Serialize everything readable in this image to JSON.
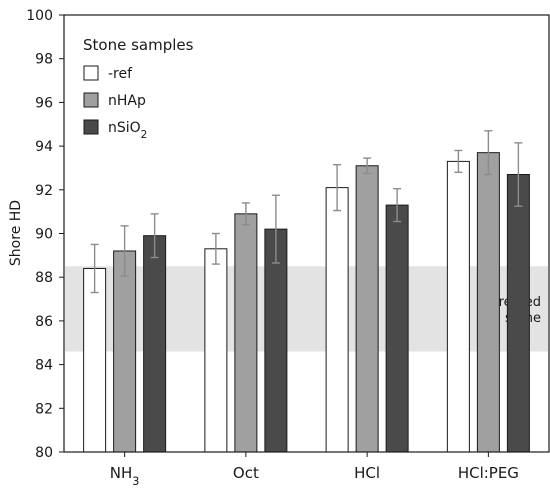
{
  "chart_data": {
    "type": "bar",
    "categories": [
      "NH3",
      "Oct",
      "HCl",
      "HCl:PEG"
    ],
    "category_display": [
      {
        "base": "NH",
        "sub": "3"
      },
      {
        "base": "Oct",
        "sub": ""
      },
      {
        "base": "HCl",
        "sub": ""
      },
      {
        "base": "HCl:PEG",
        "sub": ""
      }
    ],
    "ylabel": "Shore HD",
    "xlabel": "",
    "ylim": [
      80,
      100
    ],
    "yticks": [
      80,
      82,
      84,
      86,
      88,
      90,
      92,
      94,
      96,
      98,
      100
    ],
    "legend": {
      "title": "Stone samples",
      "position": "top-left"
    },
    "series": [
      {
        "name": "-ref",
        "label_display": {
          "base": "-ref",
          "sub": ""
        },
        "color": "#ffffff",
        "values": [
          88.4,
          89.3,
          92.1,
          93.3
        ],
        "err": [
          1.1,
          0.7,
          1.05,
          0.5
        ]
      },
      {
        "name": "nHAp",
        "label_display": {
          "base": "nHAp",
          "sub": ""
        },
        "color": "#a0a0a0",
        "values": [
          89.2,
          90.9,
          93.1,
          93.7
        ],
        "err": [
          1.15,
          0.5,
          0.35,
          1.0
        ]
      },
      {
        "name": "nSiO2",
        "label_display": {
          "base": "nSiO",
          "sub": "2"
        },
        "color": "#4a4a4a",
        "values": [
          89.9,
          90.2,
          91.3,
          92.7
        ],
        "err": [
          1.0,
          1.55,
          0.75,
          1.45
        ]
      }
    ],
    "reference_band": {
      "range": [
        84.6,
        88.5
      ],
      "color": "#e3e3e3",
      "label_lines": [
        "untreated",
        "stone"
      ]
    },
    "grid": false
  }
}
